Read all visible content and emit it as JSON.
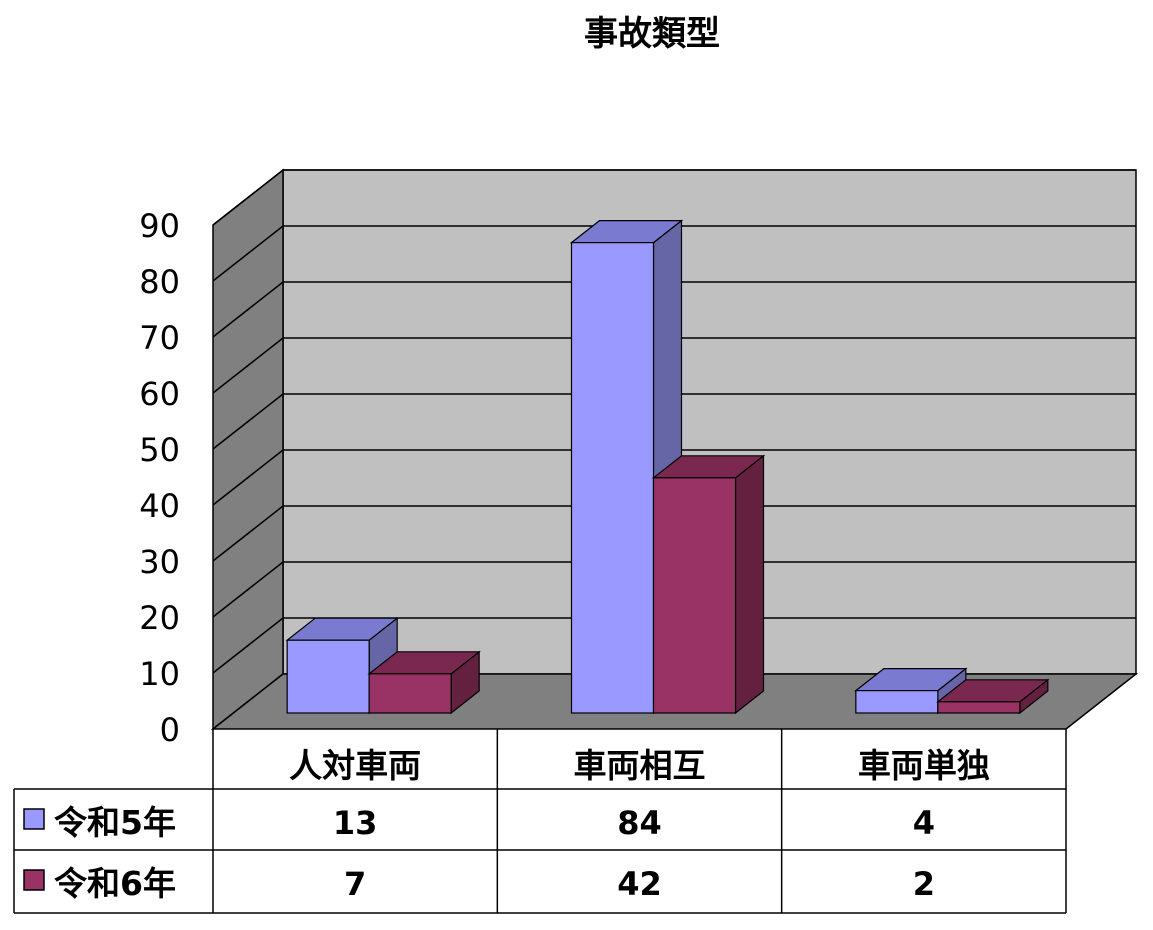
{
  "chart_data": {
    "type": "bar",
    "title": "事故類型",
    "categories": [
      "人対車両",
      "車両相互",
      "車両単独"
    ],
    "series": [
      {
        "name": "令和5年",
        "values": [
          13,
          84,
          4
        ],
        "color": "#9999ff",
        "side_color": "#6666a6",
        "top_color": "#7a7ad0"
      },
      {
        "name": "令和6年",
        "values": [
          7,
          42,
          2
        ],
        "color": "#993366",
        "side_color": "#63213f",
        "top_color": "#7a2850"
      }
    ],
    "ylim": [
      0,
      90
    ],
    "yticks": [
      0,
      10,
      20,
      30,
      40,
      50,
      60,
      70,
      80,
      90
    ],
    "grid": true,
    "data_table": true,
    "wall_color": "#c0c0c0",
    "floor_color": "#808080"
  }
}
